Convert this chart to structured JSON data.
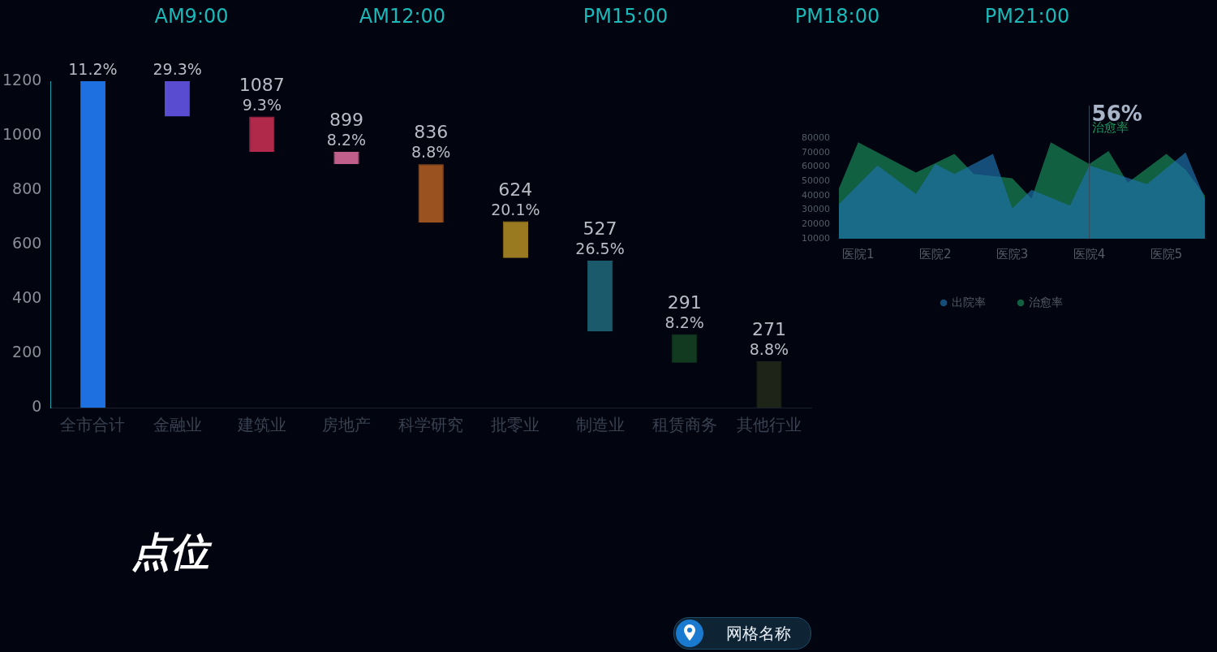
{
  "chart_data": [
    {
      "type": "bar",
      "categories": [
        "全市合计",
        "金融业",
        "建筑业",
        "房地产",
        "科学研究",
        "批零业",
        "制造业",
        "租赁商务",
        "其他行业"
      ],
      "values": [
        1200,
        130,
        130,
        45,
        215,
        135,
        260,
        105,
        170
      ],
      "base": [
        0,
        1070,
        940,
        895,
        680,
        550,
        280,
        165,
        0
      ],
      "colors": [
        "#1e6fe0",
        "#5a4cd0",
        "#b0284a",
        "#c0608a",
        "#9a5220",
        "#9a7a20",
        "#1a5a6a",
        "#123a20",
        "#1e2418"
      ],
      "annotations": [
        {
          "text": "11.2%",
          "x": "全市合计",
          "y": 1200
        },
        {
          "text": "29.3%",
          "x": "金融业",
          "y": 1200
        },
        {
          "text": "1087\n9.3%",
          "x": "建筑业",
          "y": 1070
        },
        {
          "text": "899\n8.2%",
          "x": "房地产",
          "y": 940
        },
        {
          "text": "836\n8.8%",
          "x": "科学研究",
          "y": 895
        },
        {
          "text": "624\n20.1%",
          "x": "批零业",
          "y": 685
        },
        {
          "text": "527\n26.5%",
          "x": "制造业",
          "y": 540
        },
        {
          "text": "291\n8.2%",
          "x": "租赁商务",
          "y": 270
        },
        {
          "text": "271\n8.8%",
          "x": "其他行业",
          "y": 170
        }
      ],
      "ylim": [
        0,
        1200
      ],
      "yticks": [
        0,
        200,
        400,
        600,
        800,
        1000,
        1200
      ],
      "grid": false
    },
    {
      "type": "area",
      "legend": "bottom",
      "grid": false,
      "categories": [
        null,
        "医院1",
        null,
        null,
        null,
        "医院2",
        null,
        null,
        null,
        "医院3",
        null,
        null,
        null,
        "医院4",
        null,
        null,
        null,
        "医院5",
        null,
        null
      ],
      "ylim": [
        10000,
        80000
      ],
      "yticks": [
        10000,
        20000,
        30000,
        40000,
        50000,
        60000,
        70000,
        80000
      ],
      "series": [
        {
          "name": "出院率",
          "color": "#1f6fa8",
          "values": [
            34000,
            null,
            61000,
            null,
            41000,
            62000,
            55000,
            null,
            69000,
            31000,
            44000,
            null,
            33000,
            61000,
            null,
            null,
            48000,
            null,
            70000,
            38000
          ]
        },
        {
          "name": "治愈率",
          "color": "#1a8a5a",
          "values": [
            45000,
            77000,
            null,
            null,
            56000,
            null,
            69000,
            55000,
            null,
            52000,
            38000,
            77000,
            null,
            62000,
            71000,
            49000,
            null,
            69000,
            58000,
            40000
          ]
        }
      ],
      "ref_lines": [
        {
          "axis": "x",
          "value": "医院4",
          "color": "#3a4a5a"
        }
      ],
      "annotations": [
        "56%",
        "治愈率"
      ]
    },
    {
      "type": "other",
      "annotations": [
        "AM9:00",
        "AM12:00",
        "PM15:00",
        "PM18:00",
        "PM21:00",
        "点位",
        "网格名称"
      ]
    }
  ]
}
